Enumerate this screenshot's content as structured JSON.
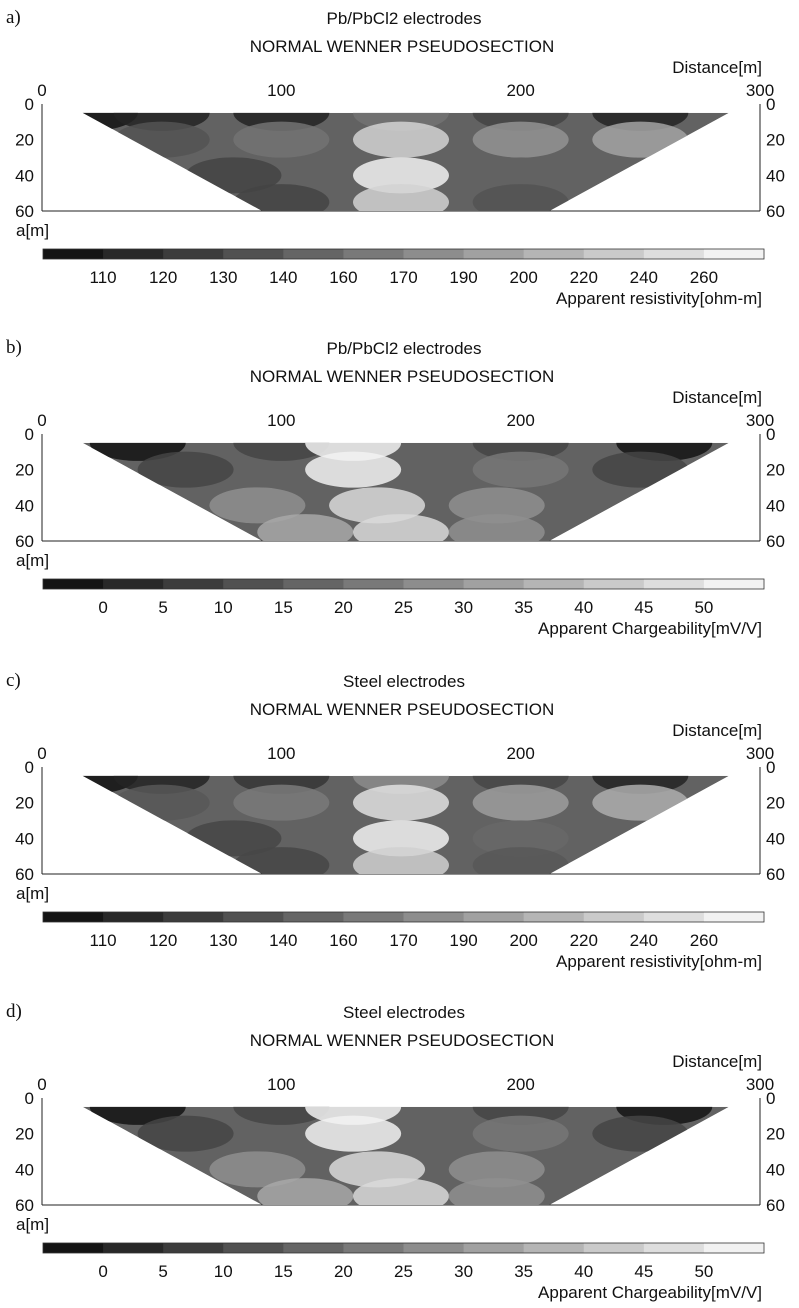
{
  "chart_data": [
    {
      "type": "heatmap",
      "panel_label": "a)",
      "title": "Pb/PbCl2 electrodes",
      "subtitle": "NORMAL WENNER PSEUDOSECTION",
      "xlabel": "Distance[m]",
      "ylabel": "a[m]",
      "xlim": [
        0,
        300
      ],
      "ylim": [
        0,
        60
      ],
      "x_ticks": [
        "0",
        "100",
        "200",
        "300"
      ],
      "y_ticks": [
        "0",
        "20",
        "40",
        "60"
      ],
      "colorbar_label": "Apparent resistivity[ohm-m]",
      "colorbar_ticks": [
        "110",
        "120",
        "130",
        "140",
        "160",
        "170",
        "190",
        "200",
        "220",
        "240",
        "260"
      ],
      "cells": [
        {
          "x": 20,
          "a": 5,
          "v": 110
        },
        {
          "x": 50,
          "a": 5,
          "v": 120
        },
        {
          "x": 100,
          "a": 5,
          "v": 120
        },
        {
          "x": 150,
          "a": 5,
          "v": 170
        },
        {
          "x": 200,
          "a": 5,
          "v": 140
        },
        {
          "x": 250,
          "a": 5,
          "v": 120
        },
        {
          "x": 50,
          "a": 20,
          "v": 150
        },
        {
          "x": 100,
          "a": 20,
          "v": 170
        },
        {
          "x": 150,
          "a": 20,
          "v": 230
        },
        {
          "x": 200,
          "a": 20,
          "v": 190
        },
        {
          "x": 250,
          "a": 20,
          "v": 200
        },
        {
          "x": 80,
          "a": 40,
          "v": 140
        },
        {
          "x": 150,
          "a": 40,
          "v": 250
        },
        {
          "x": 200,
          "a": 40,
          "v": 160
        },
        {
          "x": 100,
          "a": 55,
          "v": 140
        },
        {
          "x": 150,
          "a": 55,
          "v": 230
        },
        {
          "x": 200,
          "a": 55,
          "v": 150
        }
      ]
    },
    {
      "type": "heatmap",
      "panel_label": "b)",
      "title": "Pb/PbCl2 electrodes",
      "subtitle": "NORMAL WENNER PSEUDOSECTION",
      "xlabel": "Distance[m]",
      "ylabel": "a[m]",
      "xlim": [
        0,
        300
      ],
      "ylim": [
        0,
        60
      ],
      "x_ticks": [
        "0",
        "100",
        "200",
        "300"
      ],
      "y_ticks": [
        "0",
        "20",
        "40",
        "60"
      ],
      "colorbar_label": "Apparent Chargeability[mV/V]",
      "colorbar_ticks": [
        "0",
        "5",
        "10",
        "15",
        "20",
        "25",
        "30",
        "35",
        "40",
        "45",
        "50"
      ],
      "cells": [
        {
          "x": 40,
          "a": 5,
          "v": 0
        },
        {
          "x": 100,
          "a": 5,
          "v": 10
        },
        {
          "x": 130,
          "a": 5,
          "v": 45
        },
        {
          "x": 200,
          "a": 5,
          "v": 10
        },
        {
          "x": 260,
          "a": 5,
          "v": 0
        },
        {
          "x": 60,
          "a": 20,
          "v": 10
        },
        {
          "x": 130,
          "a": 20,
          "v": 45
        },
        {
          "x": 200,
          "a": 20,
          "v": 20
        },
        {
          "x": 250,
          "a": 20,
          "v": 10
        },
        {
          "x": 90,
          "a": 40,
          "v": 25
        },
        {
          "x": 140,
          "a": 40,
          "v": 40
        },
        {
          "x": 190,
          "a": 40,
          "v": 25
        },
        {
          "x": 110,
          "a": 55,
          "v": 30
        },
        {
          "x": 150,
          "a": 55,
          "v": 40
        },
        {
          "x": 190,
          "a": 55,
          "v": 25
        }
      ]
    },
    {
      "type": "heatmap",
      "panel_label": "c)",
      "title": "Steel electrodes",
      "subtitle": "NORMAL WENNER PSEUDOSECTION",
      "xlabel": "Distance[m]",
      "ylabel": "a[m]",
      "xlim": [
        0,
        300
      ],
      "ylim": [
        0,
        60
      ],
      "x_ticks": [
        "0",
        "100",
        "200",
        "300"
      ],
      "y_ticks": [
        "0",
        "20",
        "40",
        "60"
      ],
      "colorbar_label": "Apparent resistivity[ohm-m]",
      "colorbar_ticks": [
        "110",
        "120",
        "130",
        "140",
        "160",
        "170",
        "190",
        "200",
        "220",
        "240",
        "260"
      ],
      "cells": [
        {
          "x": 20,
          "a": 5,
          "v": 110
        },
        {
          "x": 50,
          "a": 5,
          "v": 120
        },
        {
          "x": 100,
          "a": 5,
          "v": 130
        },
        {
          "x": 150,
          "a": 5,
          "v": 180
        },
        {
          "x": 200,
          "a": 5,
          "v": 140
        },
        {
          "x": 250,
          "a": 5,
          "v": 120
        },
        {
          "x": 50,
          "a": 20,
          "v": 150
        },
        {
          "x": 100,
          "a": 20,
          "v": 170
        },
        {
          "x": 150,
          "a": 20,
          "v": 230
        },
        {
          "x": 200,
          "a": 20,
          "v": 190
        },
        {
          "x": 250,
          "a": 20,
          "v": 200
        },
        {
          "x": 80,
          "a": 40,
          "v": 140
        },
        {
          "x": 150,
          "a": 40,
          "v": 240
        },
        {
          "x": 200,
          "a": 40,
          "v": 160
        },
        {
          "x": 100,
          "a": 55,
          "v": 140
        },
        {
          "x": 150,
          "a": 55,
          "v": 220
        },
        {
          "x": 200,
          "a": 55,
          "v": 150
        }
      ]
    },
    {
      "type": "heatmap",
      "panel_label": "d)",
      "title": "Steel electrodes",
      "subtitle": "NORMAL WENNER PSEUDOSECTION",
      "xlabel": "Distance[m]",
      "ylabel": "a[m]",
      "xlim": [
        0,
        300
      ],
      "ylim": [
        0,
        60
      ],
      "x_ticks": [
        "0",
        "100",
        "200",
        "300"
      ],
      "y_ticks": [
        "0",
        "20",
        "40",
        "60"
      ],
      "colorbar_label": "Apparent Chargeability[mV/V]",
      "colorbar_ticks": [
        "0",
        "5",
        "10",
        "15",
        "20",
        "25",
        "30",
        "35",
        "40",
        "45",
        "50"
      ],
      "cells": [
        {
          "x": 40,
          "a": 5,
          "v": 0
        },
        {
          "x": 100,
          "a": 5,
          "v": 10
        },
        {
          "x": 130,
          "a": 5,
          "v": 45
        },
        {
          "x": 200,
          "a": 5,
          "v": 10
        },
        {
          "x": 260,
          "a": 5,
          "v": 0
        },
        {
          "x": 60,
          "a": 20,
          "v": 10
        },
        {
          "x": 130,
          "a": 20,
          "v": 45
        },
        {
          "x": 200,
          "a": 20,
          "v": 20
        },
        {
          "x": 250,
          "a": 20,
          "v": 10
        },
        {
          "x": 90,
          "a": 40,
          "v": 25
        },
        {
          "x": 140,
          "a": 40,
          "v": 40
        },
        {
          "x": 190,
          "a": 40,
          "v": 25
        },
        {
          "x": 110,
          "a": 55,
          "v": 30
        },
        {
          "x": 150,
          "a": 55,
          "v": 40
        },
        {
          "x": 190,
          "a": 55,
          "v": 25
        }
      ]
    }
  ]
}
